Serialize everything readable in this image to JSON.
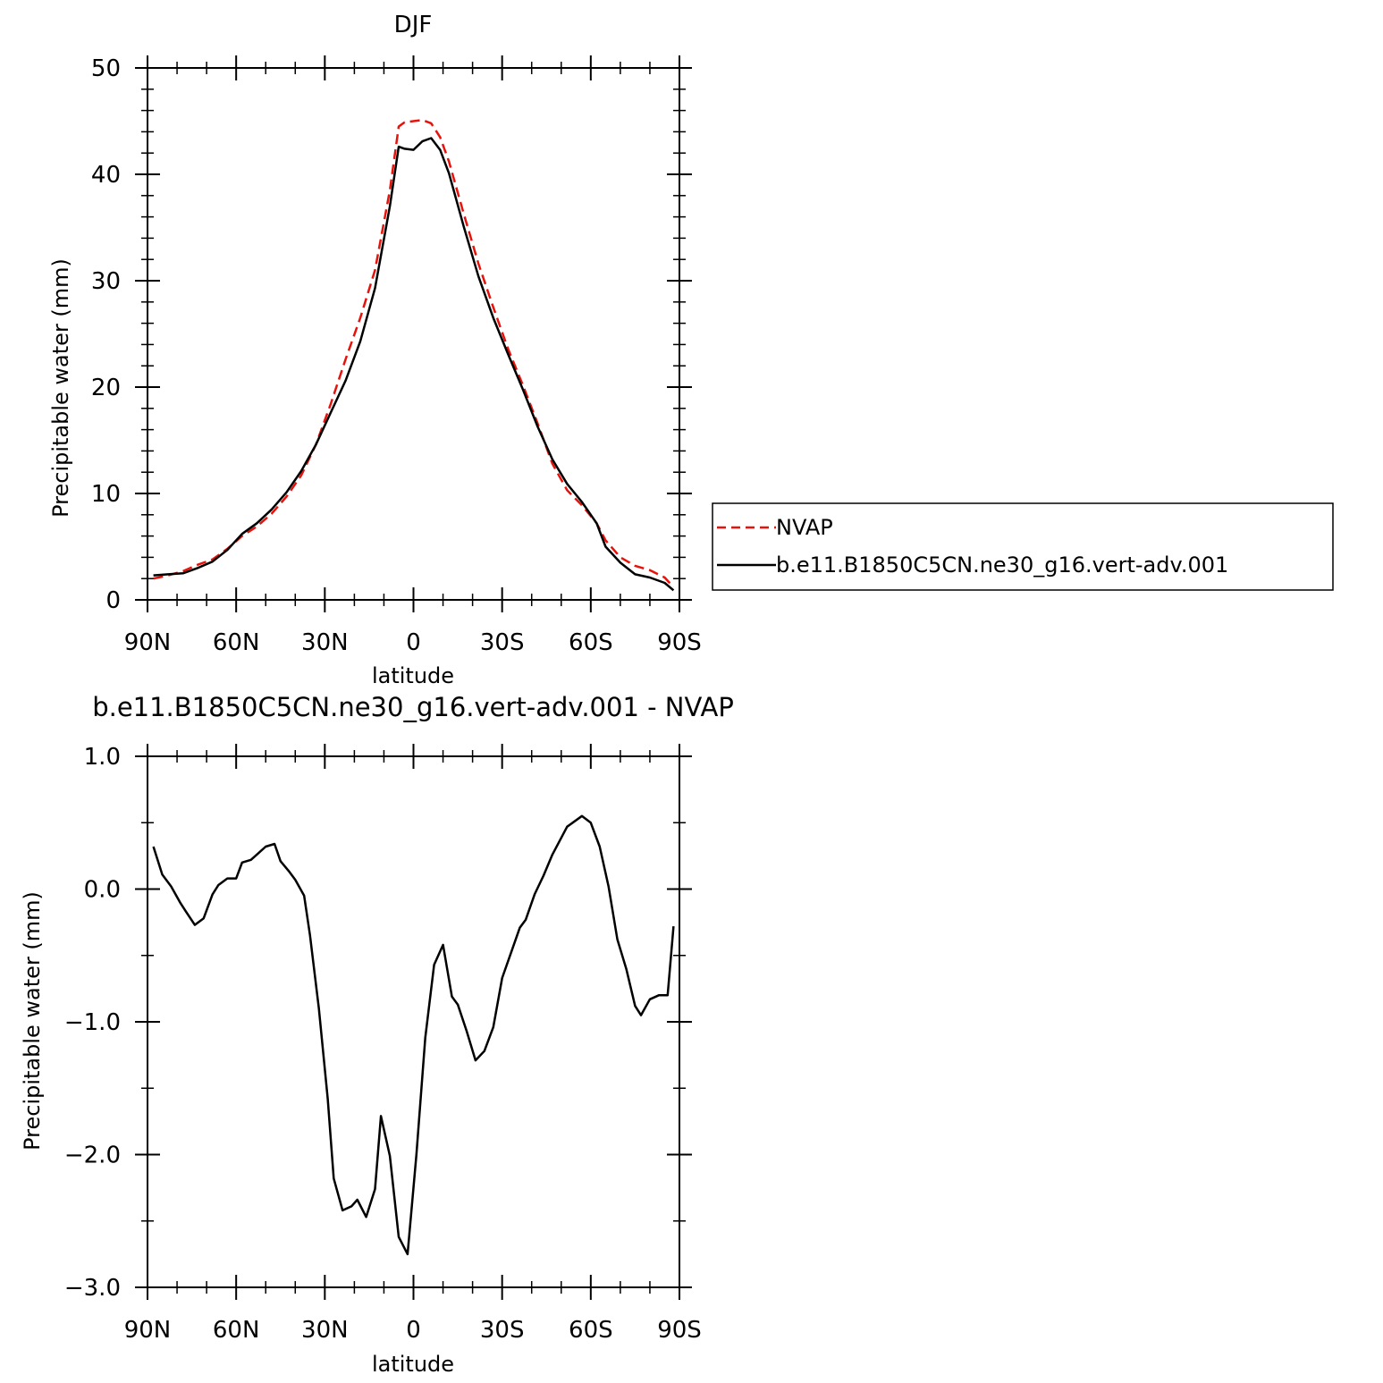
{
  "figure": {
    "background": "#ffffff",
    "axis_color": "#000000"
  },
  "chart_data": [
    {
      "type": "line",
      "title": "DJF",
      "xlabel": "latitude",
      "ylabel": "Precipitable water (mm)",
      "xlim": [
        -90,
        90
      ],
      "ylim": [
        0,
        50
      ],
      "x_ticks": [
        -90,
        -60,
        -30,
        0,
        30,
        60,
        90
      ],
      "x_tick_labels": [
        "90N",
        "60N",
        "30N",
        "0",
        "30S",
        "60S",
        "90S"
      ],
      "y_ticks": [
        0,
        10,
        20,
        30,
        40,
        50
      ],
      "y_tick_labels": [
        "0",
        "10",
        "20",
        "30",
        "40",
        "50"
      ],
      "grid": false,
      "legend": {
        "placement": "right",
        "entries": [
          {
            "label": "NVAP",
            "color": "#e8120c",
            "style": "dashed"
          },
          {
            "label": "b.e11.B1850C5CN.ne30_g16.vert-adv.001",
            "color": "#000000",
            "style": "solid"
          }
        ]
      },
      "series": [
        {
          "name": "NVAP",
          "color": "#e8120c",
          "style": "dashed",
          "x": [
            -88,
            -83,
            -78,
            -73,
            -68,
            -63,
            -58,
            -53,
            -48,
            -43,
            -38,
            -33,
            -28,
            -23,
            -18,
            -13,
            -8,
            -5,
            -3,
            0,
            3,
            6,
            9,
            12,
            17,
            22,
            27,
            32,
            37,
            42,
            47,
            52,
            57,
            62,
            65,
            70,
            75,
            80,
            85,
            88
          ],
          "y": [
            2.0,
            2.3,
            2.7,
            3.3,
            3.8,
            4.8,
            6.0,
            6.9,
            8.1,
            9.7,
            11.7,
            14.6,
            18.4,
            22.6,
            26.5,
            31.0,
            38.5,
            44.5,
            44.9,
            45.0,
            45.1,
            44.8,
            43.5,
            41.2,
            36.3,
            31.6,
            27.5,
            23.6,
            20.2,
            16.6,
            12.8,
            10.3,
            8.9,
            7.2,
            5.6,
            4.0,
            3.2,
            2.8,
            2.1,
            1.2
          ]
        },
        {
          "name": "b.e11.B1850C5CN.ne30_g16.vert-adv.001",
          "color": "#000000",
          "style": "solid",
          "x": [
            -88,
            -83,
            -78,
            -73,
            -68,
            -63,
            -58,
            -53,
            -48,
            -43,
            -38,
            -33,
            -28,
            -23,
            -18,
            -13,
            -8,
            -5,
            -3,
            0,
            3,
            6,
            9,
            12,
            17,
            22,
            27,
            32,
            37,
            42,
            47,
            52,
            57,
            62,
            65,
            70,
            75,
            80,
            85,
            88
          ],
          "y": [
            2.3,
            2.4,
            2.5,
            3.0,
            3.6,
            4.7,
            6.2,
            7.2,
            8.5,
            10.1,
            12.1,
            14.6,
            17.6,
            20.6,
            24.3,
            29.3,
            37.0,
            42.6,
            42.4,
            42.3,
            43.1,
            43.4,
            42.3,
            40.1,
            35.1,
            30.4,
            26.5,
            23.1,
            19.8,
            16.3,
            13.2,
            10.9,
            9.2,
            7.2,
            5.0,
            3.5,
            2.4,
            2.1,
            1.6,
            0.9
          ]
        }
      ]
    },
    {
      "type": "line",
      "title": "b.e11.B1850C5CN.ne30_g16.vert-adv.001  -  NVAP",
      "xlabel": "latitude",
      "ylabel": "Precipitable water (mm)",
      "xlim": [
        -90,
        90
      ],
      "ylim": [
        -3,
        1
      ],
      "x_ticks": [
        -90,
        -60,
        -30,
        0,
        30,
        60,
        90
      ],
      "x_tick_labels": [
        "90N",
        "60N",
        "30N",
        "0",
        "30S",
        "60S",
        "90S"
      ],
      "y_ticks": [
        -3,
        -2,
        -1,
        0,
        1
      ],
      "y_tick_labels": [
        "-3.0",
        "-2.0",
        "-1.0",
        "0.0",
        "1.0"
      ],
      "grid": false,
      "series": [
        {
          "color": "#000000",
          "style": "solid",
          "x": [
            -88,
            -85,
            -82,
            -79,
            -77,
            -74,
            -71,
            -68,
            -66,
            -63,
            -60,
            -58,
            -55,
            -53,
            -50,
            -47,
            -45,
            -42,
            -40,
            -37,
            -35,
            -32,
            -29,
            -27,
            -24,
            -21,
            -19,
            -16,
            -13,
            -11,
            -8,
            -5,
            -2,
            1,
            4,
            7,
            10,
            13,
            15,
            18,
            21,
            24,
            27,
            30,
            33,
            36,
            38,
            41,
            44,
            47,
            52,
            57,
            60,
            63,
            66,
            69,
            72,
            75,
            77,
            80,
            83,
            86,
            88
          ],
          "y": [
            0.32,
            0.11,
            0.02,
            -0.1,
            -0.17,
            -0.27,
            -0.22,
            -0.04,
            0.03,
            0.08,
            0.08,
            0.2,
            0.22,
            0.26,
            0.32,
            0.34,
            0.21,
            0.13,
            0.07,
            -0.05,
            -0.35,
            -0.9,
            -1.58,
            -2.18,
            -2.42,
            -2.39,
            -2.34,
            -2.47,
            -2.26,
            -1.71,
            -2.01,
            -2.62,
            -2.75,
            -2.0,
            -1.12,
            -0.57,
            -0.42,
            -0.81,
            -0.87,
            -1.07,
            -1.29,
            -1.22,
            -1.04,
            -0.67,
            -0.48,
            -0.29,
            -0.23,
            -0.04,
            0.1,
            0.26,
            0.47,
            0.55,
            0.5,
            0.32,
            0.02,
            -0.38,
            -0.6,
            -0.88,
            -0.95,
            -0.83,
            -0.8,
            -0.8,
            -0.28
          ]
        }
      ]
    }
  ]
}
